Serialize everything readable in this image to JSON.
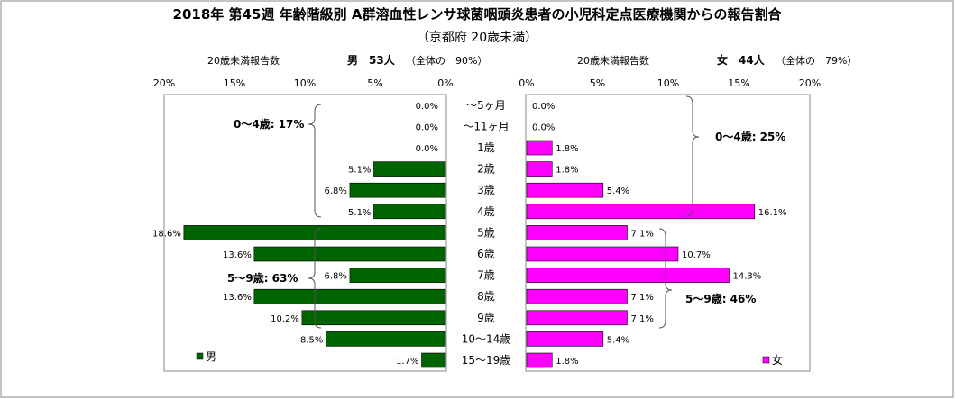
{
  "chart_data": {
    "type": "bar",
    "title": "2018年 第45週 年齢階級別 A群溶血性レンサ球菌咽頭炎患者の小児科定点医療機関からの報告割合",
    "subtitle": "（京都府 20歳未満）",
    "categories": [
      "～5ヶ月",
      "～11ヶ月",
      "1歳",
      "2歳",
      "3歳",
      "4歳",
      "5歳",
      "6歳",
      "7歳",
      "8歳",
      "9歳",
      "10～14歳",
      "15～19歳"
    ],
    "axis_tick_labels": [
      "0%",
      "5%",
      "10%",
      "15%",
      "20%"
    ],
    "xlim": [
      0,
      20
    ],
    "male": {
      "header_label": "20歳未満報告数",
      "summary": "男　53人",
      "summary_note": "（全体の　90%）",
      "legend": "男",
      "color": "#006400",
      "values": [
        0.0,
        0.0,
        0.0,
        5.1,
        6.8,
        5.1,
        18.6,
        13.6,
        6.8,
        13.6,
        10.2,
        8.5,
        1.7
      ],
      "value_labels": [
        "0.0%",
        "0.0%",
        "0.0%",
        "5.1%",
        "6.8%",
        "5.1%",
        "18.6%",
        "13.6%",
        "6.8%",
        "13.6%",
        "10.2%",
        "8.5%",
        "1.7%"
      ],
      "group_annotations": [
        "0～4歳: 17%",
        "5～9歳: 63%"
      ]
    },
    "female": {
      "header_label": "20歳未満報告数",
      "summary": "女　44人",
      "summary_note": "（全体の　79%）",
      "legend": "女",
      "color": "#ff00ff",
      "values": [
        0.0,
        0.0,
        1.8,
        1.8,
        5.4,
        16.1,
        7.1,
        10.7,
        14.3,
        7.1,
        7.1,
        5.4,
        1.8
      ],
      "value_labels": [
        "0.0%",
        "0.0%",
        "1.8%",
        "1.8%",
        "5.4%",
        "16.1%",
        "7.1%",
        "10.7%",
        "14.3%",
        "7.1%",
        "7.1%",
        "5.4%",
        "1.8%"
      ],
      "group_annotations": [
        "0～4歳: 25%",
        "5～9歳: 46%"
      ]
    }
  }
}
